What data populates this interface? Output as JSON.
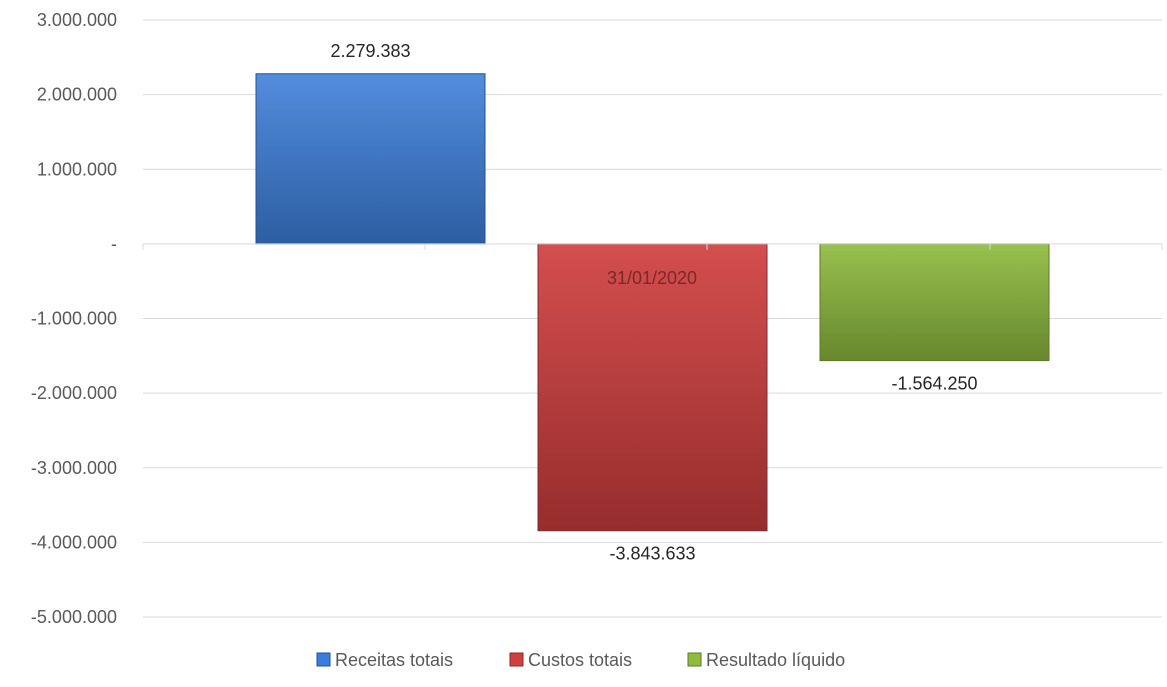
{
  "chart_data": {
    "type": "bar",
    "categories": [
      "31/01/2020"
    ],
    "series": [
      {
        "name": "Receitas totais",
        "values": [
          2279383
        ],
        "label": "2.279.383",
        "color": "#3b7dd8"
      },
      {
        "name": "Custos totais",
        "values": [
          -3843633
        ],
        "label": "-3.843.633",
        "color": "#d03f3f"
      },
      {
        "name": "Resultado líquido",
        "values": [
          -1564250
        ],
        "label": "-1.564.250",
        "color": "#8fbc3f"
      }
    ],
    "ylim": [
      -5000000,
      3000000
    ],
    "yticks": [
      3000000,
      2000000,
      1000000,
      0,
      -1000000,
      -2000000,
      -3000000,
      -4000000,
      -5000000
    ],
    "ytick_labels": [
      "3.000.000",
      "2.000.000",
      "1.000.000",
      "-",
      "-1.000.000",
      "-2.000.000",
      "-3.000.000",
      "-4.000.000",
      "-5.000.000"
    ],
    "title": "",
    "xlabel": "",
    "ylabel": "",
    "grid": true,
    "legend_position": "bottom"
  }
}
